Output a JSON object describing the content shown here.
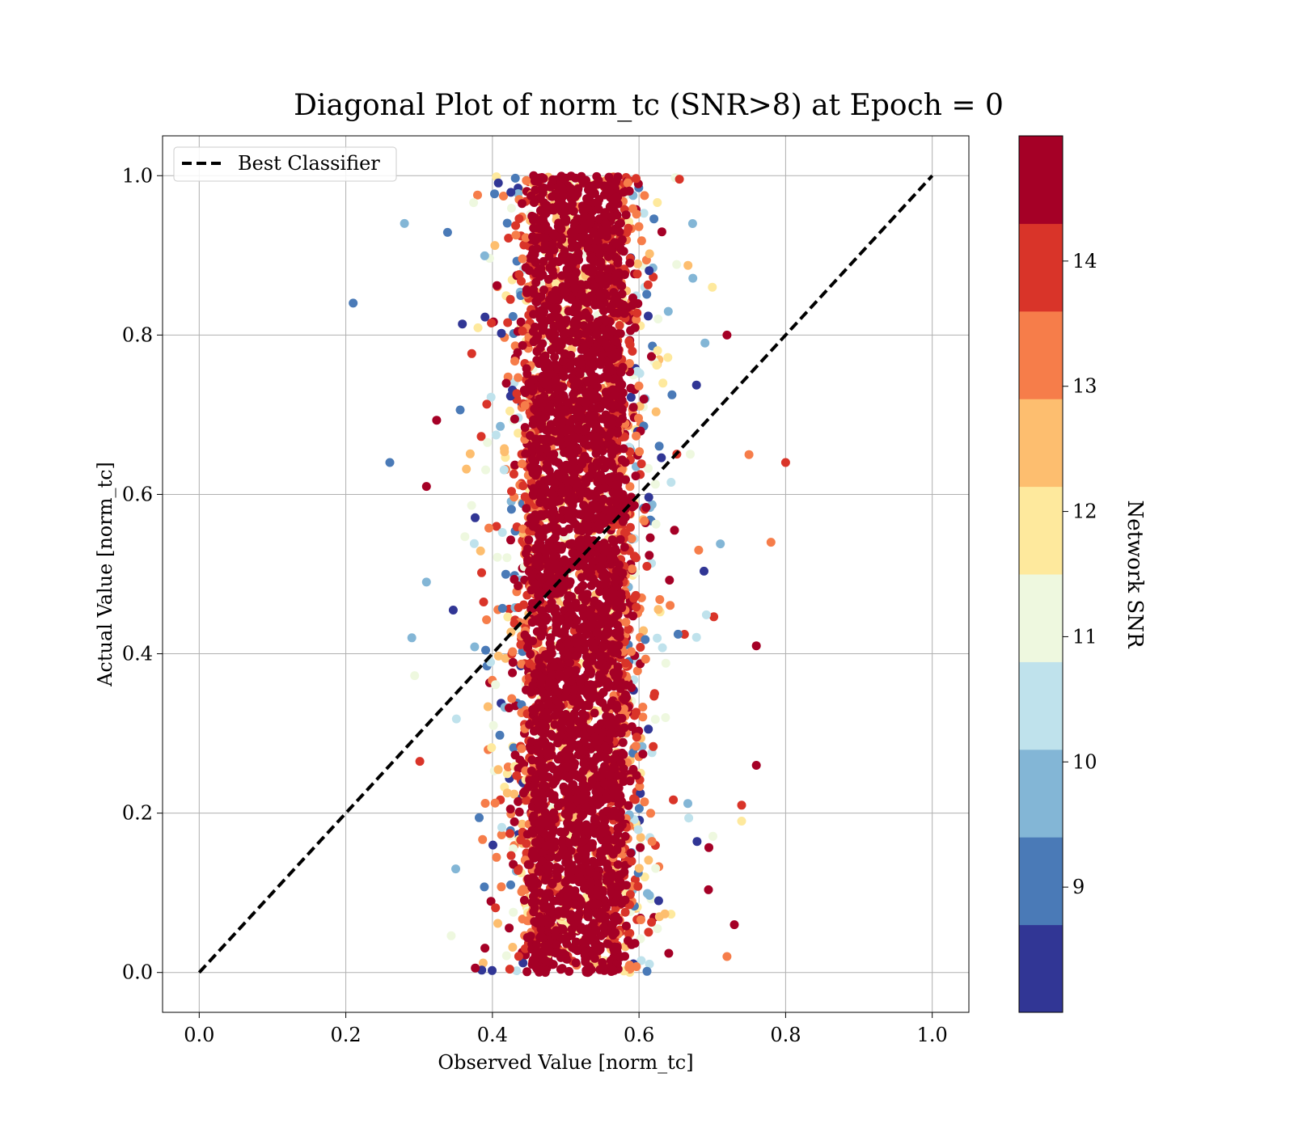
{
  "chart_data": {
    "type": "scatter",
    "title": "Diagonal Plot of norm_tc (SNR>8) at Epoch = 0",
    "xlabel": "Observed Value [norm_tc]",
    "ylabel": "Actual Value [norm_tc]",
    "xlim": [
      -0.05,
      1.05
    ],
    "ylim": [
      -0.05,
      1.05
    ],
    "x_ticks": [
      "0.0",
      "0.2",
      "0.4",
      "0.6",
      "0.8",
      "1.0"
    ],
    "y_ticks": [
      "0.0",
      "0.2",
      "0.4",
      "0.6",
      "0.8",
      "1.0"
    ],
    "grid": true,
    "legend": {
      "position": "top-left",
      "entries": [
        "Best Classifier"
      ]
    },
    "diagonal": {
      "x": [
        0.0,
        1.0
      ],
      "y": [
        0.0,
        1.0
      ],
      "style": "dashed",
      "color": "#000000"
    },
    "colorbar": {
      "label": "Network SNR",
      "range": [
        8,
        15
      ],
      "ticks": [
        "9",
        "10",
        "11",
        "12",
        "13",
        "14"
      ],
      "colors": [
        "#313695",
        "#4a7ab7",
        "#83b6d6",
        "#bfe2ec",
        "#eef8df",
        "#fee99d",
        "#fdbe6f",
        "#f67d4a",
        "#d93429",
        "#a50026"
      ]
    },
    "points_description": "Approximately 0.5 of observed values across actual values 0 to 1; dense core at observed ~0.45–0.58 with high SNR, sparse lower-SNR outliers from ~0.2 to ~0.8",
    "sample_points": [
      {
        "x": 0.21,
        "y": 0.84,
        "snr": 9
      },
      {
        "x": 0.26,
        "y": 0.64,
        "snr": 9
      },
      {
        "x": 0.29,
        "y": 0.42,
        "snr": 10
      },
      {
        "x": 0.31,
        "y": 0.61,
        "snr": 15
      },
      {
        "x": 0.31,
        "y": 0.49,
        "snr": 10
      },
      {
        "x": 0.28,
        "y": 0.94,
        "snr": 10
      },
      {
        "x": 0.35,
        "y": 0.13,
        "snr": 10
      },
      {
        "x": 0.76,
        "y": 0.41,
        "snr": 15
      },
      {
        "x": 0.76,
        "y": 0.26,
        "snr": 15
      },
      {
        "x": 0.78,
        "y": 0.54,
        "snr": 13
      },
      {
        "x": 0.8,
        "y": 0.64,
        "snr": 14
      },
      {
        "x": 0.72,
        "y": 0.8,
        "snr": 15
      },
      {
        "x": 0.7,
        "y": 0.86,
        "snr": 12
      },
      {
        "x": 0.69,
        "y": 0.79,
        "snr": 10
      },
      {
        "x": 0.75,
        "y": 0.65,
        "snr": 13
      },
      {
        "x": 0.74,
        "y": 0.21,
        "snr": 14
      },
      {
        "x": 0.74,
        "y": 0.19,
        "snr": 12
      },
      {
        "x": 0.73,
        "y": 0.06,
        "snr": 15
      },
      {
        "x": 0.72,
        "y": 0.02,
        "snr": 13
      }
    ]
  }
}
